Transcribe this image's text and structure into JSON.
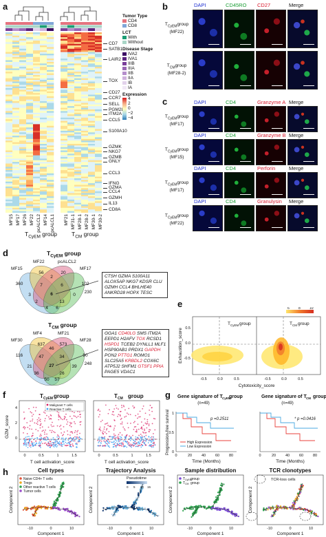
{
  "panels": {
    "a": "a",
    "b": "b",
    "c": "c",
    "d": "d",
    "e": "e",
    "f": "f",
    "g": "g",
    "h": "h"
  },
  "heatmap": {
    "legend_tumor_type_title": "Tumor Type",
    "tumor_types": [
      {
        "label": "CD4",
        "color": "#e5737f"
      },
      {
        "label": "CD8",
        "color": "#7fa6d8"
      }
    ],
    "legend_lct_title": "LCT",
    "lct": [
      {
        "label": "With",
        "color": "#1a9d74"
      },
      {
        "label": "Without",
        "color": "#a9d6c7"
      }
    ],
    "legend_stage_title": "Disease Stage",
    "stages": [
      {
        "label": "IVA2",
        "color": "#3a0a63"
      },
      {
        "label": "IVA1",
        "color": "#5a237f"
      },
      {
        "label": "IIIB",
        "color": "#7a3f9a"
      },
      {
        "label": "IIIA",
        "color": "#9866b4"
      },
      {
        "label": "IIB",
        "color": "#b58ecc"
      },
      {
        "label": "IIA",
        "color": "#cfb3de"
      },
      {
        "label": "IB",
        "color": "#e2d2ec"
      },
      {
        "label": "IA",
        "color": "#f1e8f6"
      }
    ],
    "legend_expr_title": "Expression",
    "expr_ticks": [
      "4",
      "2",
      "0",
      "−2",
      "−4"
    ],
    "genes": [
      "CD7",
      "SATB1",
      "LAIR2",
      "TOX",
      "CD27",
      "CCR7",
      "SELL",
      "PGM2L1",
      "ITM2A",
      "CCL5",
      "S100A10",
      "GZMK",
      "NKG7",
      "GZMB",
      "GNLY",
      "CCL3",
      "IFNG",
      "GZMA",
      "CCL4",
      "GZMH",
      "IL13",
      "CD8A"
    ],
    "group_left": "T",
    "group_left_sub": "CyEM",
    "group_left_suffix": " group",
    "group_right": "T",
    "group_right_sub": "CM",
    "group_right_suffix": " group",
    "samples_left": [
      "MF15",
      "MF17",
      "MF26",
      "MF22",
      "pcALCL2",
      "MF14",
      "pcALCL1"
    ],
    "samples_right": [
      "MF21",
      "MF31-1",
      "MF28-1",
      "MF28-2",
      "MF30-1",
      "MF30-2"
    ]
  },
  "panel_b": {
    "headers": [
      "DAPI",
      "CD45RO",
      "CD27",
      "Merge"
    ],
    "header_colors": [
      "#1e2fd0",
      "#1a9d34",
      "#d8182c",
      "#111111"
    ],
    "rows": [
      {
        "group": "T",
        "sub": "CyEM",
        "suffix": "group",
        "sample": "(MF22)"
      },
      {
        "group": "T",
        "sub": "CM",
        "suffix": "group",
        "sample": "(MF28-2)"
      }
    ]
  },
  "panel_c": {
    "rows": [
      {
        "headers": [
          "DAPI",
          "CD4",
          "Granzyme A",
          "Merge"
        ],
        "group": "T",
        "sub": "CyEM",
        "suffix": "group",
        "sample": "(MF17)"
      },
      {
        "headers": [
          "DAPI",
          "CD4",
          "Granzyme B",
          "Merge"
        ],
        "group": "T",
        "sub": "CyEM",
        "suffix": "group",
        "sample": "(MF15)"
      },
      {
        "headers": [
          "DAPI",
          "CD4",
          "Perforin",
          "Merge"
        ],
        "group": "T",
        "sub": "CyEM",
        "suffix": "group",
        "sample": "(MF17)"
      },
      {
        "headers": [
          "DAPI",
          "CD4",
          "Granulysin",
          "Merge"
        ],
        "group": "T",
        "sub": "CyEM",
        "suffix": "group",
        "sample": "(MF22)"
      }
    ]
  },
  "panel_d": {
    "title1": "T",
    "title1_sub": "CyEM",
    "title1_suffix": " group",
    "venn1_sets": [
      "MF15",
      "MF22",
      "pcALCL2",
      "MF17"
    ],
    "venn1_numbers": [
      "230",
      "360",
      "56",
      "20",
      "102",
      "3",
      "2",
      "0",
      "13",
      "2",
      "7",
      "6",
      "4",
      "6",
      "6"
    ],
    "box1_genes": "CTSH GZMA S100A11 ALOX5AP NKG7 KDSR CLU GZMH CCL4 BHLHE40 ANKRD28 HOPX TESC",
    "title2": "T",
    "title2_sub": "CM",
    "title2_suffix": " group",
    "venn2_sets": [
      "MF30",
      "MF4",
      "MF21",
      "MF28"
    ],
    "venn2_numbers": [
      "248",
      "116",
      "637",
      "573",
      "90",
      "21",
      "46",
      "39",
      "26",
      "36",
      "47",
      "34",
      "50",
      "57",
      "27"
    ],
    "box2_lines": [
      {
        "parts": [
          {
            "t": "GGA1 ",
            "r": false
          },
          {
            "t": "CD40LG",
            "r": true
          },
          {
            "t": " SMS ITM2A",
            "r": false
          }
        ]
      },
      {
        "parts": [
          {
            "t": "EEPD1 H2AFV ",
            "r": false
          },
          {
            "t": "TOX",
            "r": true
          },
          {
            "t": " RCSD1",
            "r": false
          }
        ]
      },
      {
        "parts": [
          {
            "t": "HSPD1",
            "r": true
          },
          {
            "t": " TCEB2 DYNLL1 MLF1",
            "r": false
          }
        ]
      },
      {
        "parts": [
          {
            "t": "HSP90AB1 PRDX1 ",
            "r": false
          },
          {
            "t": "GAPDH",
            "r": true
          }
        ]
      },
      {
        "parts": [
          {
            "t": "PON2 ",
            "r": false
          },
          {
            "t": "PTTG1",
            "r": true
          },
          {
            "t": " ROMO1",
            "r": false
          }
        ]
      },
      {
        "parts": [
          {
            "t": "SLC25A5 ",
            "r": false
          },
          {
            "t": "KRBDL2",
            "r": true
          },
          {
            "t": " COX6C",
            "r": false
          }
        ]
      },
      {
        "parts": [
          {
            "t": "ATP5J2 SHFM1 ",
            "r": false
          },
          {
            "t": "GTSF1 PPIA",
            "r": true
          }
        ]
      },
      {
        "parts": [
          {
            "t": "PAGE5 VDAC1",
            "r": false
          }
        ]
      }
    ]
  },
  "panel_e": {
    "ylabel": "Exhaustion_score",
    "xlabel": "Cytotoxicity_score",
    "label_left": "T",
    "label_left_sub": "CyEM",
    "label_left_suffix": " group",
    "label_right": "T",
    "label_right_sub": "CM",
    "label_right_suffix": " group",
    "level_ticks": [
      "6",
      "8",
      "10"
    ],
    "x_ticks": [
      "-0.5",
      "0.0",
      "0.5",
      "-0.5",
      "0.0",
      "0.5"
    ],
    "y_ticks": [
      "0.5",
      "0.0",
      "-0.5"
    ]
  },
  "panel_f": {
    "title_left": "T",
    "title_left_sub": "CyEM",
    "title_left_suffix": " group",
    "title_right": "T",
    "title_right_sub": "CM",
    "title_right_suffix": " group",
    "ylabel": "GZM_score",
    "xlabel": "T cell activation_score",
    "legend": [
      {
        "label": "Malignant T cells",
        "color": "#d81b60"
      },
      {
        "label": "Reactive T cells",
        "color": "#42a5f5"
      }
    ],
    "x_ticks": [
      "0",
      "0.5",
      "1",
      "1.5"
    ],
    "y_ticks": [
      "4",
      "2",
      "0"
    ]
  },
  "panel_g": {
    "title_left_pre": "Gene signature of T",
    "title_left_sub": "CyEM",
    "title_left_suffix": " group",
    "title_right_pre": "Gene signature of T",
    "title_right_sub": "CM",
    "title_right_suffix": " group",
    "n_left": "(n=49)",
    "n_right": "(n=49)",
    "p_left": "p =0.2511",
    "p_right": "* p =0.0416",
    "ylabel": "Progression-free survival",
    "xlabel": "Time (Months)",
    "legend": [
      {
        "label": "High Expression",
        "color": "#e8413b"
      },
      {
        "label": "Low Expression",
        "color": "#4aa8e0"
      }
    ],
    "x_ticks": [
      "0",
      "20",
      "40",
      "60",
      "80"
    ],
    "y_ticks": [
      "1",
      "0.5",
      "0"
    ]
  },
  "panel_h": {
    "titles": [
      "Cell types",
      "Trajectory Analysis",
      "Sample distribution",
      "TCR clonotypes"
    ],
    "cell_types": [
      {
        "label": "Naive CD4+ T cells",
        "color": "#e2553a"
      },
      {
        "label": "Tregs",
        "color": "#f0a81e"
      },
      {
        "label": "Other reactive T cells",
        "color": "#2ea44f"
      },
      {
        "label": "Tumor cells",
        "color": "#9b4dca"
      }
    ],
    "pseudotime_label": "Pseudotime",
    "pseudotime_ticks": [
      "0",
      "5",
      "10",
      "15"
    ],
    "sample_dist": [
      {
        "label": "T",
        "sub": "CyEM",
        "suffix": " group",
        "color": "#7b4bd6"
      },
      {
        "label": "T",
        "sub": "CM",
        "suffix": " group",
        "color": "#2ea44f"
      }
    ],
    "tcr_label": "TCR-loss cells",
    "xlabel": "Component 1",
    "ylabel": "Component 2",
    "x_ticks": [
      "-10",
      "0",
      "10"
    ]
  }
}
